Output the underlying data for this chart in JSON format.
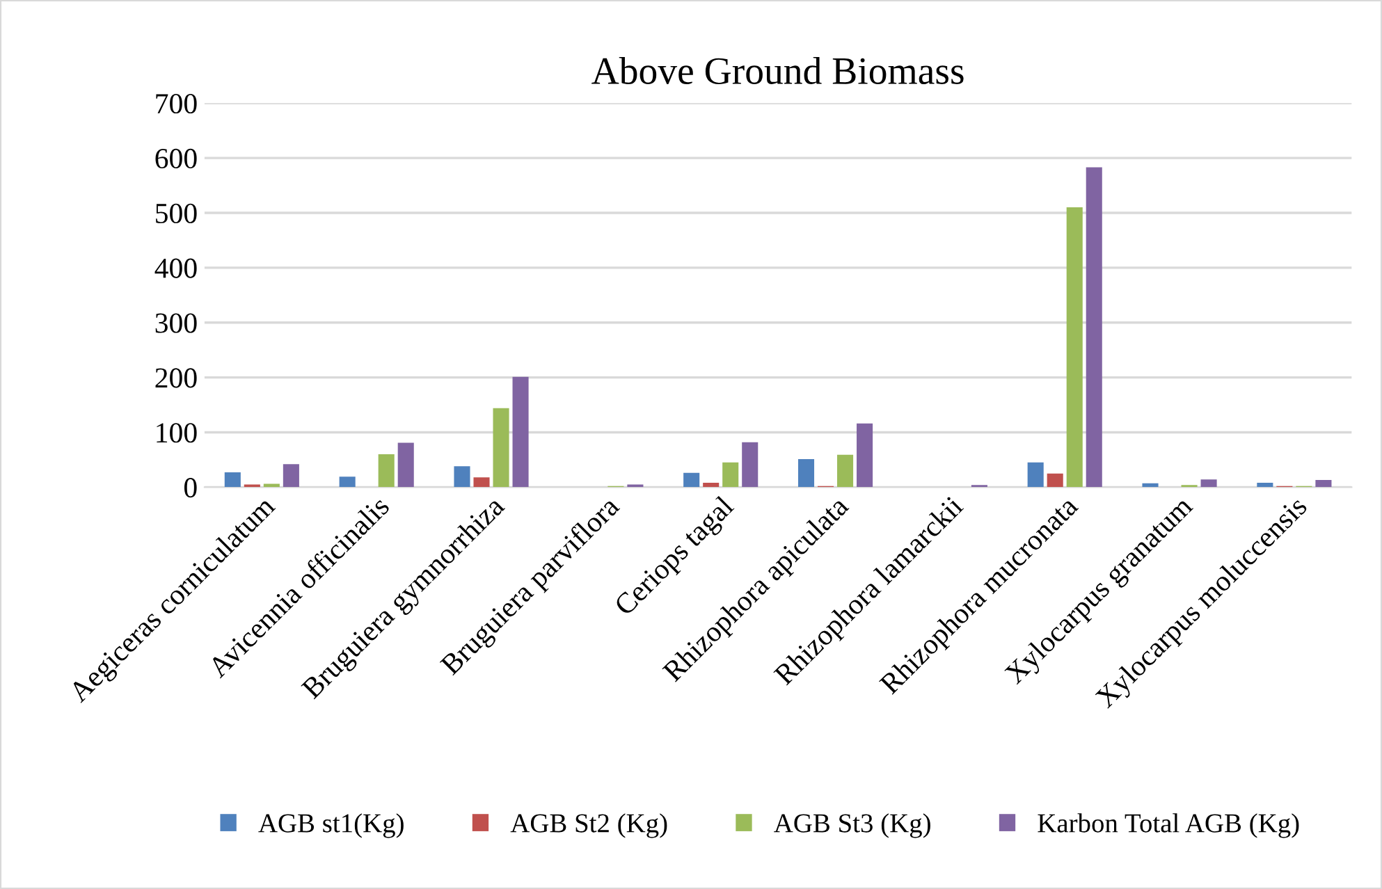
{
  "chart_data": {
    "type": "bar",
    "title": "Above Ground Biomass",
    "categories": [
      "Aegiceras corniculatum",
      "Avicennia officinalis",
      "Bruguiera gymnorrhiza",
      "Bruguiera parviflora",
      "Ceriops tagal",
      "Rhizophora apiculata",
      "Rhizophora lamarckii",
      "Rhizophora mucronata",
      "Xylocarpus granatum",
      "Xylocarpus moluccensis"
    ],
    "series": [
      {
        "name": "AGB st1(Kg)",
        "color": "#4f81bd",
        "values": [
          27,
          19,
          38,
          null,
          26,
          51,
          0,
          45,
          7,
          8
        ]
      },
      {
        "name": "AGB St2 (Kg)",
        "color": "#c0504d",
        "values": [
          5,
          0,
          18,
          0,
          8,
          2,
          0,
          25,
          null,
          2
        ]
      },
      {
        "name": "AGB St3 (Kg)",
        "color": "#9bbb59",
        "values": [
          6,
          60,
          144,
          2,
          45,
          59,
          null,
          510,
          4,
          2
        ]
      },
      {
        "name": "Karbon Total AGB (Kg)",
        "color": "#8064a2",
        "values": [
          42,
          81,
          201,
          5,
          82,
          116,
          4,
          583,
          14,
          13
        ]
      }
    ],
    "ylim": [
      0,
      700
    ],
    "yticks": [
      0,
      100,
      200,
      300,
      400,
      500,
      600,
      700
    ],
    "grid": "y",
    "legend": "bottom"
  }
}
